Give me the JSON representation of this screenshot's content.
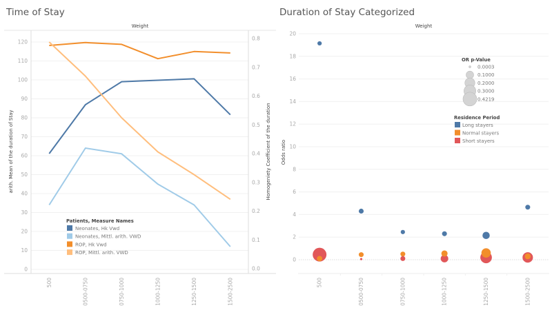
{
  "panels": {
    "left_title": "Time of Stay",
    "right_title": "Duration of Stay Categorized"
  },
  "chart_data": [
    {
      "type": "line",
      "title": "Time of Stay",
      "header": "Weight",
      "categories": [
        "500",
        "0500-0750",
        "0750-1000",
        "1000-1250",
        "1250-1500",
        "1500-2500"
      ],
      "ylabel": "arith. Mean of the duration of Stay",
      "y2label": "Homogeniety Coefficient of the duration",
      "ylim": [
        0,
        125
      ],
      "y2lim": [
        0,
        0.8
      ],
      "yticks": [
        "0",
        "10",
        "20",
        "30",
        "40",
        "50",
        "60",
        "70",
        "80",
        "90",
        "100",
        "110",
        "120"
      ],
      "y2ticks": [
        "0.0",
        "0.1",
        "0.2",
        "0.3",
        "0.4",
        "0.5",
        "0.6",
        "0.7",
        "0.8"
      ],
      "legend_title": "Patients, Measure Names",
      "legend_position": "bottom-left",
      "grid": true,
      "series": [
        {
          "name": "Neonates, Hk Vwd",
          "axis": "right",
          "color": "#4e79a7",
          "values": [
            0.4,
            0.57,
            0.65,
            0.655,
            0.66,
            0.535
          ]
        },
        {
          "name": "Neonates, Mittl. arith. VWD",
          "axis": "left",
          "color": "#a0cbe8",
          "values": [
            34,
            64,
            61,
            45,
            34,
            12
          ]
        },
        {
          "name": "ROP, Hk Vwd",
          "axis": "right",
          "color": "#f28e2b",
          "values": [
            0.776,
            0.786,
            0.78,
            0.73,
            0.755,
            0.75
          ]
        },
        {
          "name": "ROP, Mittl. arith. VWD",
          "axis": "left",
          "color": "#ffbe7d",
          "values": [
            120,
            102,
            80,
            62,
            50,
            37
          ]
        }
      ]
    },
    {
      "type": "scatter",
      "title": "Duration of Stay Categorized",
      "header": "Weight",
      "categories": [
        "500",
        "0500-0750",
        "0750-1000",
        "1000-1250",
        "1250-1500",
        "1500-2500"
      ],
      "ylabel": "Odds ratio",
      "ylim": [
        -1.2,
        20
      ],
      "yticks": [
        "0",
        "2",
        "4",
        "6",
        "8",
        "10",
        "12",
        "14",
        "16",
        "18",
        "20"
      ],
      "grid": true,
      "size_legend": {
        "title": "OR p-Value",
        "values": [
          "0.0003",
          "0.1000",
          "0.2000",
          "0.3000",
          "0.4219"
        ]
      },
      "color_legend": {
        "title": "Residence Period",
        "position": "top-right"
      },
      "series": [
        {
          "name": "Long stayers",
          "color": "#4e79a7",
          "values": [
            19.15,
            4.3,
            2.45,
            2.3,
            2.15,
            4.65
          ],
          "p_values": [
            0.02,
            0.03,
            0.02,
            0.03,
            0.09,
            0.03
          ]
        },
        {
          "name": "Normal stayers",
          "color": "#f28e2b",
          "values": [
            0.1,
            0.45,
            0.5,
            0.55,
            0.6,
            0.3
          ],
          "p_values": [
            0.04,
            0.03,
            0.03,
            0.06,
            0.17,
            0.05
          ]
        },
        {
          "name": "Short stayers",
          "color": "#e15759",
          "values": [
            0.45,
            0.05,
            0.1,
            0.1,
            0.2,
            0.2
          ],
          "p_values": [
            0.42,
            0.001,
            0.03,
            0.1,
            0.28,
            0.22
          ]
        }
      ]
    }
  ]
}
